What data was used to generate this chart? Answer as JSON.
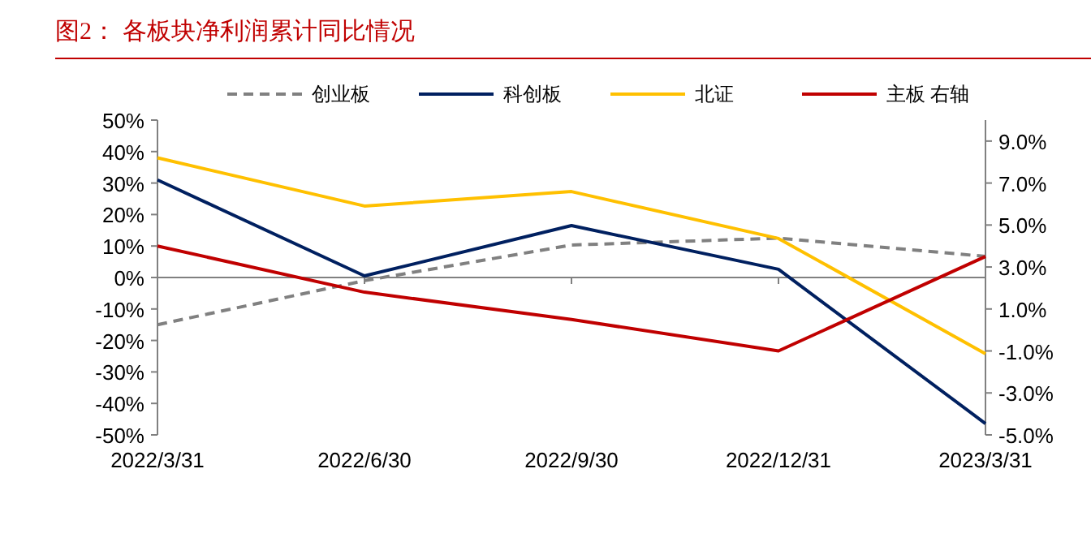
{
  "chart_data": {
    "type": "line",
    "title": "图2： 各板块净利润累计同比情况",
    "categories": [
      "2022/3/31",
      "2022/6/30",
      "2022/9/30",
      "2022/12/31",
      "2023/3/31"
    ],
    "series": [
      {
        "name": "创业板",
        "color": "#808080",
        "line_style": "dashed",
        "values": [
          -15,
          -1,
          10.3,
          12.5,
          6.7
        ]
      },
      {
        "name": "科创板",
        "color": "#002060",
        "values": [
          31,
          0.5,
          16.5,
          2.6,
          -46.4
        ]
      },
      {
        "name": "北证",
        "color": "#ffc000",
        "values": [
          38,
          22.7,
          27.3,
          12.4,
          -24.2
        ]
      },
      {
        "name": "主板 右轴",
        "color": "#c00000",
        "axis": "y2",
        "values": [
          4.0,
          1.8,
          0.5,
          -1.0,
          3.5
        ]
      }
    ],
    "ylim": [
      -50,
      50
    ],
    "yticks": [
      {
        "value": -50,
        "label": "-50%"
      },
      {
        "value": -40,
        "label": "-40%"
      },
      {
        "value": -30,
        "label": "-30%"
      },
      {
        "value": -20,
        "label": "-20%"
      },
      {
        "value": -10,
        "label": "-10%"
      },
      {
        "value": 0,
        "label": "0%"
      },
      {
        "value": 10,
        "label": "10%"
      },
      {
        "value": 20,
        "label": "20%"
      },
      {
        "value": 30,
        "label": "30%"
      },
      {
        "value": 40,
        "label": "40%"
      },
      {
        "value": 50,
        "label": "50%"
      }
    ],
    "y2lim": [
      -5,
      10
    ],
    "y2ticks": [
      {
        "value": -5,
        "label": "-5.0%"
      },
      {
        "value": -3,
        "label": "-3.0%"
      },
      {
        "value": -1,
        "label": "-1.0%"
      },
      {
        "value": 1,
        "label": "1.0%"
      },
      {
        "value": 3,
        "label": "3.0%"
      },
      {
        "value": 5,
        "label": "5.0%"
      },
      {
        "value": 7,
        "label": "7.0%"
      },
      {
        "value": 9,
        "label": "9.0%"
      }
    ],
    "legend": "top",
    "marker": "none"
  }
}
